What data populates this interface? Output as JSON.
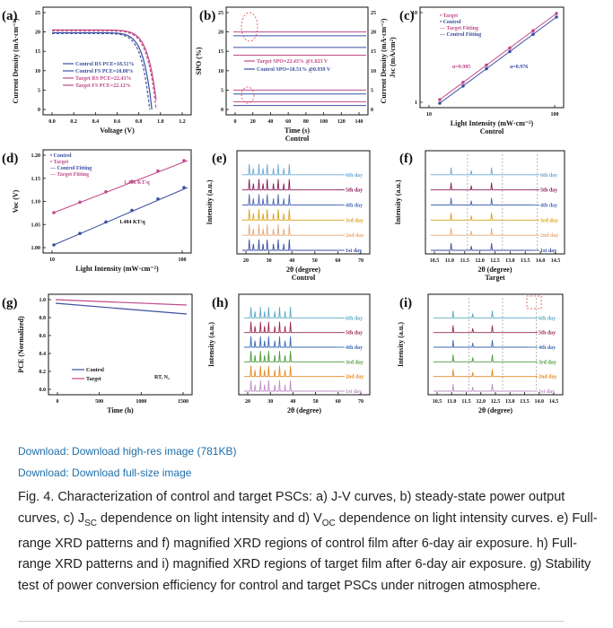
{
  "figure": {
    "panels": [
      {
        "letter": "(a)",
        "xlabel": "Voltage (V)",
        "ylabel": "Current Density (mA·cm⁻²)",
        "xticks": [
          "0.0",
          "0.2",
          "0.4",
          "0.6",
          "0.8",
          "1.0",
          "1.2"
        ],
        "yticks": [
          "0",
          "5",
          "10",
          "15",
          "20",
          "25"
        ],
        "legend": [
          "Control RS PCE=18.51%",
          "Control FS PCE=18.08%",
          "Target RS PCE=22.43%",
          "Target FS PCE=22.12%"
        ]
      },
      {
        "letter": "(b)",
        "xlabel": "Time (s)",
        "sublabel": "Control",
        "ylabel": "SPO (%)",
        "ylabel_right": "Current Density (mA·cm⁻²)",
        "xticks": [
          "0",
          "20",
          "40",
          "60",
          "80",
          "100",
          "120",
          "140"
        ],
        "yticks": [
          "0",
          "5",
          "10",
          "15",
          "20",
          "25"
        ],
        "yticks_right": [
          "25",
          "20",
          "15",
          "10",
          "5",
          "0"
        ],
        "legend": [
          "Target  SPO=22.43% @1.023 V",
          "Control SPO=18.51% @0.939 V"
        ]
      },
      {
        "letter": "(c)",
        "xlabel": "Light Intensity (mW·cm⁻²)",
        "sublabel": "Control",
        "ylabel": "Jsc (mA/cm²)",
        "xticks": [
          "10",
          "100"
        ],
        "yticks": [
          "1",
          "10"
        ],
        "legend": [
          "Target",
          "Control",
          "Target Fitting",
          "Control Fitting"
        ],
        "annotations": [
          "α=0.985",
          "α=0.976"
        ]
      },
      {
        "letter": "(d)",
        "xlabel": "Light Intensity (mW·cm⁻²)",
        "ylabel": "Voc (V)",
        "xticks": [
          "10",
          "100"
        ],
        "yticks": [
          "1.00",
          "1.05",
          "1.10",
          "1.15",
          "1.20"
        ],
        "legend": [
          "Control",
          "Target",
          "Control Fitting",
          "Target Fitting"
        ],
        "annotations": [
          "1.466 KT/q",
          "1.484 KT/q"
        ]
      },
      {
        "letter": "(e)",
        "xlabel": "2θ (degree)",
        "sublabel": "Control",
        "ylabel": "Intensity (a.u.)",
        "xticks": [
          "20",
          "30",
          "40",
          "50",
          "60",
          "70"
        ],
        "days": [
          "6th day",
          "5th day",
          "4th day",
          "3rd day",
          "2nd day",
          "1st day"
        ]
      },
      {
        "letter": "(f)",
        "xlabel": "2θ (degree)",
        "sublabel": "Target",
        "ylabel": "Intensity (a.u.)",
        "xticks": [
          "10.5",
          "11.0",
          "11.5",
          "12.0",
          "12.5",
          "13.0",
          "13.5",
          "14.0",
          "14.5"
        ],
        "days": [
          "6th day",
          "5th day",
          "4th day",
          "3rd day",
          "2nd day",
          "1st day"
        ]
      },
      {
        "letter": "(g)",
        "xlabel": "Time (h)",
        "ylabel": "PCE (Normalized)",
        "xticks": [
          "0",
          "500",
          "1000",
          "1500"
        ],
        "yticks": [
          "0.0",
          "0.2",
          "0.4",
          "0.6",
          "0.8",
          "1.0"
        ],
        "legend": [
          "Control",
          "Target"
        ],
        "annotations": [
          "RT, N₂"
        ]
      },
      {
        "letter": "(h)",
        "xlabel": "2θ (degree)",
        "ylabel": "Intensity (a.u.)",
        "xticks": [
          "20",
          "30",
          "40",
          "50",
          "60",
          "70"
        ],
        "days": [
          "6th day",
          "5th day",
          "4th day",
          "3rd day",
          "2nd day",
          "1st day"
        ]
      },
      {
        "letter": "(i)",
        "xlabel": "2θ (degree)",
        "ylabel": "Intensity (a.u.)",
        "xticks": [
          "10.5",
          "11.0",
          "11.5",
          "12.0",
          "12.5",
          "13.0",
          "13.5",
          "14.0",
          "14.5"
        ],
        "days": [
          "6th day",
          "5th day",
          "4th day",
          "3rd day",
          "2nd day",
          "1st day"
        ]
      }
    ],
    "colors": {
      "control": "#3a4fa0",
      "target": "#c04a8a",
      "day": [
        "#6aa9d6",
        "#8a1a5a",
        "#4a67b5",
        "#dba21a",
        "#e5a878",
        "#3a4fa0"
      ],
      "xrd_target_day": [
        "#5aaac4",
        "#9a2a4a",
        "#3a6ab5",
        "#4a9a3a",
        "#e58a20",
        "#c090c8"
      ],
      "marker": "#d44"
    }
  },
  "links": {
    "high_res": "Download: Download high-res image (781KB)",
    "full_size": "Download: Download full-size image"
  },
  "caption": {
    "lead": "Fig. 4. Characterization of control and target PSCs: a) J-V curves, b) steady-state power output curves, c) J",
    "sub1": "SC",
    "mid": " dependence on light intensity and d) V",
    "sub2": "OC",
    "tail": " dependence on light intensity curves. e) Full-range XRD patterns and f) magnified XRD regions of control film after 6-day air exposure. h) Full-range XRD patterns and i) magnified XRD regions of target film after 6-day air exposure. g) Stability test of power conversion efficiency for control and target PSCs under nitrogen atmosphere."
  }
}
